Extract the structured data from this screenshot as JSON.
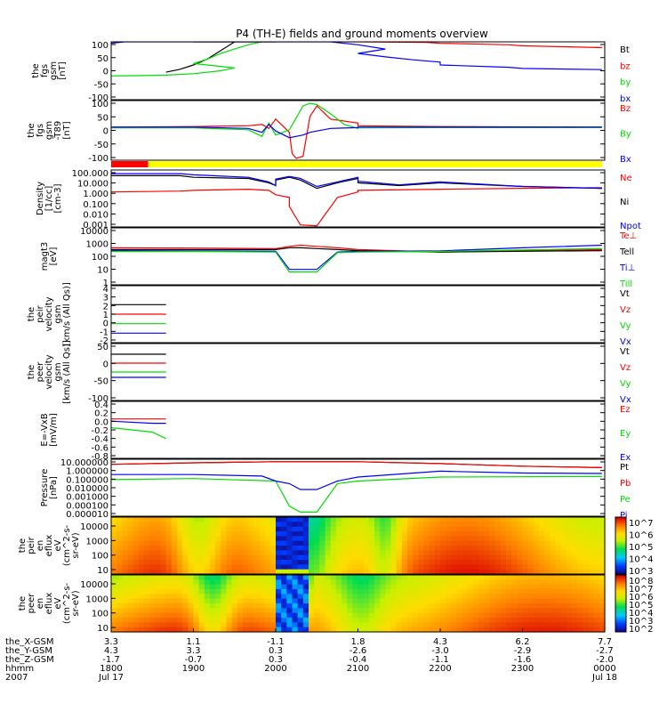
{
  "title": "P4 (TH-E) fields and ground moments overview",
  "colors": {
    "black": "#000000",
    "red": "#ff0000",
    "green": "#00dd00",
    "blue": "#0000ff",
    "yellow": "#ffff00"
  },
  "chart_data": [
    {
      "type": "line",
      "ylabel": [
        "the",
        "fgs",
        "gsm",
        "[nT]"
      ],
      "ylim": [
        -100,
        100
      ],
      "yticks": [
        "100",
        "50",
        "0",
        "-50",
        "-100"
      ],
      "series": [
        {
          "name": "Bt",
          "color": "#000000",
          "x": [
            1840,
            1850,
            1860,
            1870,
            1880,
            1890,
            1900,
            1910,
            1920,
            1930,
            1940,
            1950,
            1960
          ],
          "y": [
            -5,
            5,
            20,
            40,
            70,
            100,
            100,
            100,
            100,
            100,
            100,
            100,
            100
          ]
        },
        {
          "name": "bz",
          "color": "#ff0000",
          "x": [
            2050,
            2100,
            2150,
            2200,
            2250,
            2300,
            2330,
            2358
          ],
          "y": [
            100,
            100,
            98,
            95,
            90,
            86,
            83,
            80
          ]
        },
        {
          "name": "by",
          "color": "#00dd00",
          "x": [
            1800,
            1820,
            1840,
            1860,
            1880,
            1890,
            1900,
            1910,
            1920,
            1930,
            1940,
            1950
          ],
          "y": [
            -18,
            -17,
            -15,
            -10,
            0,
            10,
            25,
            40,
            60,
            75,
            90,
            100
          ]
        },
        {
          "name": "bx",
          "color": "#0000ff",
          "x": [
            1800,
            1810,
            1820,
            1830,
            2040,
            2060,
            2080,
            2100,
            2120,
            2140,
            2160,
            2200,
            2250,
            2300,
            2358
          ],
          "y": [
            95,
            100,
            100,
            100,
            100,
            90,
            75,
            60,
            48,
            38,
            30,
            20,
            12,
            8,
            4
          ]
        }
      ]
    },
    {
      "type": "line",
      "ylabel": [
        "the",
        "fgs",
        "gsm",
        "-T89",
        "[nT]"
      ],
      "ylim": [
        -125,
        100
      ],
      "yticks": [
        "100",
        "50",
        "0",
        "-50",
        "-100"
      ],
      "series": [
        {
          "name": "Bz",
          "color": "#ff0000",
          "x": [
            1800,
            1900,
            1940,
            1950,
            1955,
            1960,
            2010,
            2012,
            2015,
            2020,
            2025,
            2030,
            2040,
            2060,
            2100,
            2200,
            2358
          ],
          "y": [
            0,
            2,
            5,
            10,
            -5,
            30,
            -20,
            -100,
            -118,
            -110,
            40,
            80,
            30,
            15,
            5,
            2,
            0
          ]
        },
        {
          "name": "By",
          "color": "#00dd00",
          "x": [
            1800,
            1900,
            1940,
            1950,
            1955,
            1960,
            2010,
            2020,
            2025,
            2030,
            2040,
            2050,
            2060,
            2100,
            2200,
            2358
          ],
          "y": [
            -3,
            -3,
            -10,
            -35,
            15,
            -30,
            -10,
            80,
            90,
            85,
            50,
            10,
            -5,
            -3,
            -2,
            -2
          ]
        },
        {
          "name": "Bx",
          "color": "#0000ff",
          "x": [
            1800,
            1900,
            1940,
            1950,
            1955,
            1960,
            2010,
            2020,
            2025,
            2030,
            2040,
            2060,
            2100,
            2200,
            2358
          ],
          "y": [
            0,
            0,
            -5,
            -20,
            10,
            -15,
            -40,
            -30,
            -20,
            -15,
            -5,
            -2,
            0,
            0,
            0
          ]
        }
      ],
      "bar_segments": [
        {
          "color": "#ff0000",
          "x": [
            1800,
            1827
          ]
        },
        {
          "color": "#ffff00",
          "x": [
            1827,
            2358
          ]
        }
      ]
    },
    {
      "type": "line",
      "log_y": true,
      "ylabel": [
        "Density",
        "[1/cc]",
        "[cm-3]"
      ],
      "ylim": [
        0.0003,
        500
      ],
      "yticks": [
        "100.000",
        "10.000",
        "1.000",
        "0.100",
        "0.010",
        "0.001"
      ],
      "series": [
        {
          "name": "Ne",
          "color": "#ff0000",
          "x": [
            1800,
            1850,
            1900,
            1940,
            1955,
            1960,
            1970,
            2010,
            2018,
            2030,
            2045,
            2060,
            2100,
            2200,
            2300,
            2358
          ],
          "y": [
            2,
            2.5,
            3,
            4,
            3,
            1,
            0.5,
            0.05,
            0.0005,
            0.0004,
            0.5,
            2,
            3,
            4,
            5,
            6
          ]
        },
        {
          "name": "Ni",
          "color": "#000000",
          "x": [
            1800,
            1850,
            1900,
            1940,
            1955,
            1960,
            2000,
            2010,
            2018,
            2030,
            2045,
            2060,
            2100,
            2130,
            2200,
            2300,
            2358
          ],
          "y": [
            120,
            120,
            80,
            60,
            20,
            10,
            40,
            80,
            40,
            5,
            20,
            60,
            20,
            10,
            20,
            8,
            5
          ]
        },
        {
          "name": "Npot",
          "color": "#0000ff",
          "x": [
            1800,
            1850,
            1900,
            1940,
            1955,
            1960,
            2000,
            2010,
            2018,
            2030,
            2045,
            2060,
            2100,
            2130,
            2200,
            2300,
            2358
          ],
          "y": [
            200,
            200,
            150,
            80,
            25,
            10,
            50,
            100,
            60,
            8,
            25,
            80,
            30,
            12,
            25,
            8,
            5
          ]
        }
      ]
    },
    {
      "type": "line",
      "log_y": true,
      "ylabel": [
        "magt3",
        "[eV]"
      ],
      "ylim": [
        1,
        10000
      ],
      "yticks": [
        "10000",
        "1000",
        "100",
        "10",
        "1"
      ],
      "series": [
        {
          "name": "Te⊥",
          "color": "#ff0000",
          "x": [
            1800,
            1900,
            2000,
            2010,
            2018,
            2030,
            2045,
            2100,
            2200,
            2358
          ],
          "y": [
            400,
            380,
            350,
            500,
            600,
            500,
            400,
            300,
            200,
            300
          ]
        },
        {
          "name": "Tell",
          "color": "#000000",
          "x": [
            1800,
            1900,
            2000,
            2010,
            2018,
            2030,
            2045,
            2100,
            2200,
            2358
          ],
          "y": [
            300,
            300,
            300,
            400,
            400,
            350,
            300,
            250,
            200,
            250
          ]
        },
        {
          "name": "Ti⊥",
          "color": "#0000ff",
          "x": [
            1800,
            1900,
            2000,
            2010,
            2015,
            2030,
            2045,
            2100,
            2200,
            2300,
            2358
          ],
          "y": [
            250,
            240,
            230,
            12,
            12,
            12,
            200,
            220,
            240,
            400,
            600
          ]
        },
        {
          "name": "Till",
          "color": "#00dd00",
          "x": [
            1800,
            1900,
            2000,
            2010,
            2015,
            2030,
            2045,
            2100,
            2200,
            2358
          ],
          "y": [
            220,
            220,
            200,
            8,
            8,
            8,
            180,
            200,
            220,
            350
          ]
        }
      ]
    },
    {
      "type": "line",
      "ylabel": [
        "the",
        "peir",
        "velocity",
        "gsm",
        "[km/s (All Qs)]"
      ],
      "ylim": [
        -2,
        4
      ],
      "yticks": [
        "4",
        "3",
        "2",
        "1",
        "0",
        "-1",
        "-2"
      ],
      "series": [
        {
          "name": "Vt",
          "color": "#000000",
          "x": [
            1800,
            1830,
            1840
          ],
          "y": [
            2,
            2,
            2
          ]
        },
        {
          "name": "Vz",
          "color": "#ff0000",
          "x": [
            1800,
            1830,
            1840
          ],
          "y": [
            1,
            1,
            1
          ]
        },
        {
          "name": "Vy",
          "color": "#00dd00",
          "x": [
            1800,
            1830,
            1840
          ],
          "y": [
            0,
            0,
            0
          ]
        },
        {
          "name": "Vx",
          "color": "#0000ff",
          "x": [
            1800,
            1830,
            1840
          ],
          "y": [
            -1,
            -1,
            -1
          ]
        }
      ]
    },
    {
      "type": "line",
      "ylabel": [
        "the",
        "peer",
        "velocity",
        "gsm",
        "[km/s (All Qs)]"
      ],
      "ylim": [
        -100,
        60
      ],
      "yticks": [
        "50",
        "0",
        "-50",
        "-100"
      ],
      "series": [
        {
          "name": "Vt",
          "color": "#000000",
          "x": [
            1800,
            1830,
            1840
          ],
          "y": [
            30,
            30,
            30
          ]
        },
        {
          "name": "Vz",
          "color": "#ff0000",
          "x": [
            1800,
            1830,
            1840
          ],
          "y": [
            5,
            5,
            5
          ]
        },
        {
          "name": "Vy",
          "color": "#00dd00",
          "x": [
            1800,
            1830,
            1840
          ],
          "y": [
            -20,
            -20,
            -20
          ]
        },
        {
          "name": "Vx",
          "color": "#0000ff",
          "x": [
            1800,
            1830,
            1840
          ],
          "y": [
            -35,
            -35,
            -35
          ]
        }
      ]
    },
    {
      "type": "line",
      "ylabel": [
        "E=-VxB",
        "[mV/m]"
      ],
      "ylim": [
        -0.9,
        0.4
      ],
      "yticks": [
        "0.4",
        "0.2",
        "0.0",
        "-0.2",
        "-0.4",
        "-0.6",
        "-0.8"
      ],
      "series": [
        {
          "name": "Ez",
          "color": "#ff0000",
          "x": [
            1800,
            1830,
            1840
          ],
          "y": [
            0,
            0,
            0
          ]
        },
        {
          "name": "Ey",
          "color": "#00dd00",
          "x": [
            1800,
            1830,
            1840
          ],
          "y": [
            -0.2,
            -0.3,
            -0.45
          ]
        },
        {
          "name": "Ex",
          "color": "#0000ff",
          "x": [
            1800,
            1830,
            1840
          ],
          "y": [
            -0.05,
            -0.1,
            -0.1
          ]
        }
      ]
    },
    {
      "type": "line",
      "log_y": true,
      "ylabel": [
        "Pressure",
        "[nPa]"
      ],
      "ylim": [
        6.5e-06,
        40
      ],
      "yticks": [
        "10.000000",
        "1.000000",
        "0.100000",
        "0.010000",
        "0.001000",
        "0.000100",
        "0.000010"
      ],
      "series": [
        {
          "name": "Pt",
          "color": "#000000",
          "x": [
            1800,
            1900,
            2000,
            2100,
            2200,
            2300,
            2358
          ],
          "y": [
            10,
            15,
            20,
            20,
            12,
            6,
            4
          ]
        },
        {
          "name": "Pb",
          "color": "#ff0000",
          "x": [
            1800,
            1900,
            2000,
            2100,
            2200,
            2300,
            2358
          ],
          "y": [
            10,
            15,
            20,
            20,
            12,
            6,
            4
          ]
        },
        {
          "name": "Pe",
          "color": "#00dd00",
          "x": [
            1800,
            1900,
            2000,
            2010,
            2018,
            2030,
            2045,
            2100,
            2200,
            2358
          ],
          "y": [
            0.15,
            0.2,
            0.1,
            0.0001,
            2e-05,
            2e-05,
            0.05,
            0.1,
            0.3,
            0.35
          ]
        },
        {
          "name": "Pi",
          "color": "#0000ff",
          "x": [
            1800,
            1900,
            1950,
            1960,
            2000,
            2010,
            2018,
            2030,
            2045,
            2100,
            2200,
            2300,
            2358
          ],
          "y": [
            0.6,
            0.6,
            0.4,
            0.1,
            0.1,
            0.05,
            0.01,
            0.01,
            0.1,
            0.3,
            1.5,
            0.9,
            0.8
          ]
        }
      ]
    },
    {
      "type": "heatmap",
      "ylabel": [
        "the",
        "peir",
        "en",
        "eflux",
        "eV",
        "(cm^2-s-",
        "sr-eV)"
      ],
      "yticks": [
        "10000",
        "1000",
        "100",
        "10"
      ],
      "colorbar_ticks": [
        "10^7",
        "10^6",
        "10^5",
        "10^4",
        "10^3"
      ]
    },
    {
      "type": "heatmap",
      "ylabel": [
        "the",
        "peer",
        "en",
        "eflux",
        "eV",
        "(cm^2-s-",
        "sr-eV)"
      ],
      "yticks": [
        "10000",
        "1000",
        "100",
        "10"
      ],
      "colorbar_ticks": [
        "10^8",
        "10^7",
        "10^6",
        "10^5",
        "10^4",
        "10^3",
        "10^2"
      ]
    }
  ],
  "footer": {
    "row_labels": [
      "the_X-GSM",
      "the_Y-GSM",
      "the_Z-GSM",
      "hhmm",
      "2007"
    ],
    "columns": [
      [
        "3.3",
        "4.3",
        "-1.7",
        "1800",
        "Jul 17"
      ],
      [
        "1.1",
        "3.3",
        "-0.7",
        "1900",
        ""
      ],
      [
        "-1.1",
        "0.3",
        "0.3",
        "2000",
        ""
      ],
      [
        "1.8",
        "-2.6",
        "-0.4",
        "2100",
        ""
      ],
      [
        "4.3",
        "-3.0",
        "-1.1",
        "2200",
        ""
      ],
      [
        "6.2",
        "-2.9",
        "-1.6",
        "2300",
        ""
      ],
      [
        "7.7",
        "-2.7",
        "-2.0",
        "0000",
        "Jul 18"
      ]
    ]
  }
}
